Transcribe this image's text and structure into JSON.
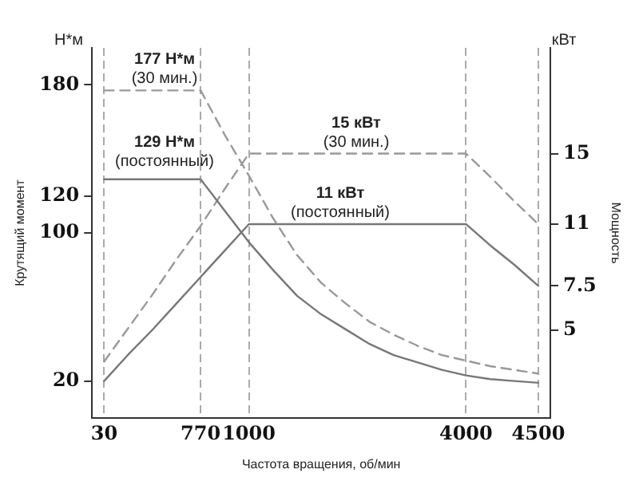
{
  "chart_data": {
    "type": "line",
    "xlabel": "Частота вращения, об/мин",
    "ylabel": "Крутящий момент",
    "y2label": "Мощность",
    "categories": [
      "30",
      null,
      null,
      null,
      "770",
      null,
      "1000",
      null,
      null,
      null,
      null,
      null,
      null,
      null,
      null,
      "4000",
      null,
      null,
      "4500"
    ],
    "series": [
      {
        "type": "line",
        "color": "#777777",
        "line_style": "solid",
        "values": [
          129,
          129,
          129,
          129,
          129,
          112,
          95,
          80,
          66,
          56,
          48,
          40,
          34,
          30,
          26,
          23,
          21,
          20,
          19
        ]
      },
      {
        "type": "line",
        "color": "#999999",
        "line_style": "dashed",
        "values": [
          177,
          177,
          177,
          177,
          177,
          153,
          131,
          108,
          88,
          73,
          62,
          52,
          45,
          39,
          34,
          31,
          28,
          26,
          24
        ]
      },
      {
        "type": "line",
        "color": "#777777",
        "line_style": "solid",
        "axis": "y2",
        "values": [
          2.1,
          3.6,
          5,
          6.5,
          8,
          9.5,
          11,
          11,
          11,
          11,
          11,
          11,
          11,
          11,
          11,
          11,
          9.8,
          8.7,
          7.5
        ]
      },
      {
        "type": "line",
        "color": "#999999",
        "line_style": "dashed",
        "axis": "y2",
        "values": [
          3.2,
          5.1,
          7,
          9,
          10.9,
          13,
          15,
          15,
          15,
          15,
          15,
          15,
          15,
          15,
          15,
          15,
          13.7,
          12.3,
          11
        ]
      }
    ],
    "ylim": [
      0,
      200
    ],
    "yticks": [
      20,
      100,
      120,
      180
    ],
    "y2lim": [
      0,
      21
    ],
    "y2ticks": [
      5,
      7.5,
      11,
      15
    ],
    "grid": "x",
    "legend": false,
    "marker": "none",
    "annotations": [
      "Н*м",
      "кВт",
      "177 Н*м\n(30 мин.)",
      "129 Н*м\n(постоянный)",
      "15 кВт\n(30 мин.)",
      "11 кВт\n(постоянный)"
    ]
  }
}
